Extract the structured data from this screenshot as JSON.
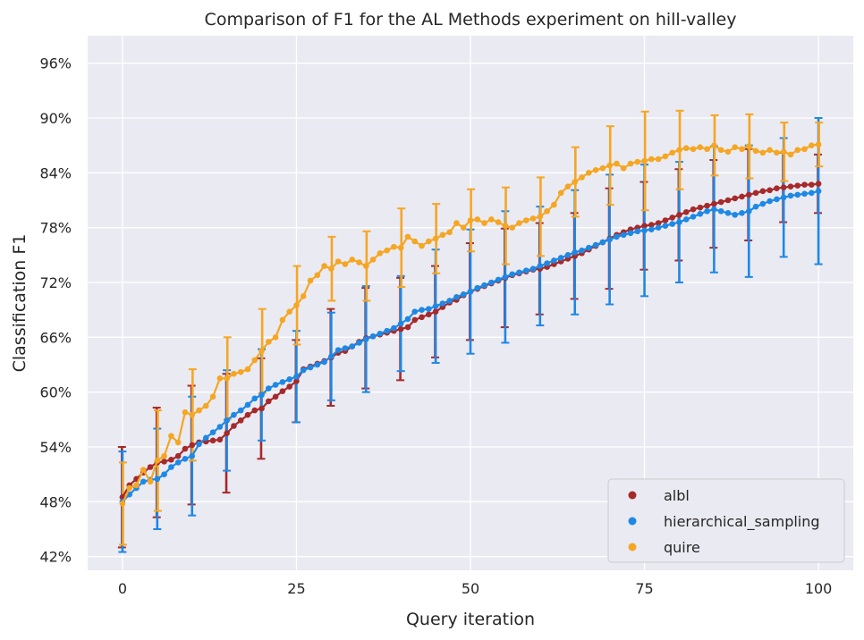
{
  "chart_data": {
    "type": "line",
    "title": "Comparison of F1 for the AL Methods experiment on hill-valley",
    "xlabel": "Query iteration",
    "ylabel": "Classification F1",
    "xlim": [
      -5,
      105
    ],
    "ylim": [
      40.5,
      99
    ],
    "x_ticks": [
      0,
      25,
      50,
      75,
      100
    ],
    "x_tick_labels": [
      "0",
      "25",
      "50",
      "75",
      "100"
    ],
    "y_ticks": [
      42,
      48,
      54,
      60,
      66,
      72,
      78,
      84,
      90,
      96
    ],
    "y_tick_labels": [
      "42%",
      "48%",
      "54%",
      "60%",
      "66%",
      "72%",
      "78%",
      "84%",
      "90%",
      "96%"
    ],
    "grid": true,
    "legend_position": "bottom-right",
    "errorbar_every": 5,
    "series": [
      {
        "name": "albl",
        "color": "#a52a2a",
        "values": [
          48.5,
          49.8,
          50.5,
          51.2,
          51.8,
          52.3,
          52.4,
          52.6,
          53.0,
          53.8,
          54.2,
          54.5,
          54.6,
          54.7,
          54.8,
          55.5,
          56.3,
          56.9,
          57.5,
          58.0,
          58.2,
          59.0,
          59.5,
          60.1,
          60.6,
          61.2,
          62.5,
          62.8,
          63.1,
          63.4,
          63.8,
          64.3,
          64.5,
          65.0,
          65.5,
          65.9,
          66.1,
          66.3,
          66.5,
          66.7,
          66.9,
          67.1,
          67.9,
          68.2,
          68.5,
          68.8,
          69.3,
          69.8,
          70.1,
          70.6,
          71.0,
          71.3,
          71.6,
          71.9,
          72.2,
          72.5,
          72.8,
          73.0,
          73.2,
          73.4,
          73.5,
          73.7,
          74.0,
          74.3,
          74.6,
          74.9,
          75.2,
          75.6,
          76.0,
          76.4,
          76.8,
          77.2,
          77.5,
          77.8,
          78.0,
          78.2,
          78.3,
          78.5,
          78.8,
          79.1,
          79.4,
          79.7,
          80.0,
          80.2,
          80.4,
          80.6,
          80.8,
          81.0,
          81.2,
          81.4,
          81.6,
          81.8,
          82.0,
          82.1,
          82.3,
          82.4,
          82.5,
          82.6,
          82.7,
          82.7,
          82.8
        ],
        "errors": [
          5.5,
          6.0,
          6.2,
          6.4,
          6.2,
          6.0,
          5.8,
          6.0,
          6.2,
          6.5,
          6.5,
          6.7,
          6.6,
          6.8,
          6.8,
          6.5,
          6.4,
          6.2,
          6.0,
          5.8,
          5.5,
          5.2,
          5.0,
          4.8,
          4.6,
          4.5,
          4.6,
          4.7,
          4.8,
          5.0,
          5.3,
          5.3,
          5.2,
          5.3,
          5.4,
          5.5,
          5.5,
          5.6,
          5.6,
          5.6,
          5.6,
          5.5,
          5.5,
          5.4,
          5.2,
          5.0,
          5.0,
          5.0,
          5.1,
          5.2,
          5.3,
          5.3,
          5.3,
          5.4,
          5.4,
          5.4,
          5.4,
          5.3,
          5.2,
          5.2,
          5.0,
          5.0,
          5.0,
          4.9,
          4.8,
          4.7,
          4.8,
          5.0,
          5.3,
          5.4,
          5.5,
          5.2,
          5.0,
          4.9,
          4.8,
          4.8,
          4.9,
          5.0,
          5.1,
          5.1,
          5.0,
          4.9,
          4.8,
          4.8,
          4.8,
          4.8,
          4.8,
          4.8,
          4.8,
          4.9,
          5.0,
          4.8,
          4.6,
          4.3,
          4.0,
          3.8,
          3.7,
          3.5,
          3.4,
          3.3,
          3.2
        ]
      },
      {
        "name": "hierarchical_sampling",
        "color": "#1e88e5",
        "values": [
          48.0,
          48.8,
          49.5,
          50.2,
          50.4,
          50.5,
          51.0,
          51.8,
          52.3,
          52.7,
          53.0,
          54.3,
          55.0,
          55.6,
          56.2,
          56.9,
          57.5,
          58.0,
          58.6,
          59.3,
          59.7,
          60.4,
          60.8,
          61.1,
          61.4,
          61.7,
          62.4,
          62.7,
          63.0,
          63.3,
          63.9,
          64.6,
          64.8,
          65.0,
          65.4,
          65.8,
          66.1,
          66.4,
          66.7,
          67.0,
          67.5,
          68.0,
          68.8,
          69.0,
          69.1,
          69.4,
          69.7,
          70.0,
          70.4,
          70.7,
          71.0,
          71.4,
          71.7,
          72.0,
          72.3,
          72.6,
          72.9,
          73.1,
          73.3,
          73.5,
          73.8,
          74.1,
          74.4,
          74.7,
          75.0,
          75.3,
          75.5,
          75.8,
          76.1,
          76.4,
          76.7,
          77.0,
          77.2,
          77.4,
          77.6,
          77.7,
          77.8,
          78.0,
          78.2,
          78.4,
          78.6,
          78.9,
          79.2,
          79.5,
          79.8,
          80.0,
          79.8,
          79.6,
          79.4,
          79.6,
          79.8,
          80.3,
          80.6,
          80.9,
          81.1,
          81.3,
          81.5,
          81.6,
          81.7,
          81.8,
          82.0
        ],
        "errors": [
          5.5,
          5.8,
          5.9,
          6.0,
          5.8,
          5.5,
          5.6,
          5.8,
          6.0,
          6.2,
          6.5,
          6.3,
          6.0,
          5.8,
          5.6,
          5.5,
          5.4,
          5.2,
          5.0,
          5.0,
          5.0,
          5.3,
          5.4,
          5.4,
          5.2,
          5.0,
          4.9,
          4.8,
          4.8,
          4.8,
          4.8,
          5.0,
          5.2,
          5.4,
          5.6,
          5.8,
          5.7,
          5.6,
          5.5,
          5.3,
          5.2,
          5.3,
          5.4,
          5.5,
          6.0,
          6.2,
          6.4,
          6.6,
          6.8,
          6.8,
          6.8,
          6.9,
          7.0,
          7.1,
          7.1,
          7.2,
          7.1,
          7.0,
          6.9,
          6.7,
          6.5,
          6.6,
          6.8,
          6.9,
          6.9,
          6.8,
          6.7,
          6.8,
          6.9,
          7.0,
          7.1,
          7.2,
          7.2,
          7.2,
          7.2,
          7.2,
          7.0,
          6.9,
          6.8,
          6.7,
          6.6,
          6.6,
          6.6,
          6.7,
          6.8,
          6.9,
          6.9,
          7.0,
          7.0,
          7.1,
          7.2,
          7.0,
          6.9,
          6.8,
          6.6,
          6.5,
          6.8,
          7.2,
          7.5,
          7.8,
          8.0
        ]
      },
      {
        "name": "quire",
        "color": "#f5a623",
        "values": [
          47.8,
          49.5,
          49.8,
          51.5,
          50.2,
          52.5,
          53.0,
          55.2,
          54.5,
          57.8,
          57.5,
          58.0,
          58.5,
          59.5,
          61.5,
          61.5,
          62.0,
          62.2,
          62.5,
          63.5,
          64.5,
          65.5,
          66.0,
          67.9,
          68.8,
          69.5,
          70.5,
          72.2,
          72.8,
          73.8,
          73.5,
          74.3,
          74.0,
          74.5,
          74.2,
          73.8,
          74.5,
          75.2,
          75.5,
          75.9,
          75.8,
          77.0,
          76.5,
          76.0,
          76.5,
          76.8,
          77.2,
          77.5,
          78.5,
          78.0,
          78.8,
          78.9,
          78.5,
          78.9,
          78.6,
          78.2,
          78.0,
          78.5,
          78.8,
          79.0,
          79.2,
          79.8,
          80.5,
          81.8,
          82.5,
          83.0,
          83.5,
          84.0,
          84.3,
          84.5,
          84.8,
          85.0,
          84.5,
          85.0,
          85.2,
          85.3,
          85.5,
          85.5,
          85.8,
          86.2,
          86.5,
          86.7,
          86.6,
          86.8,
          86.6,
          87.0,
          86.5,
          86.3,
          86.8,
          86.6,
          86.9,
          86.4,
          86.2,
          86.5,
          86.2,
          86.3,
          86.0,
          86.5,
          86.6,
          87.0,
          87.1
        ],
        "errors": [
          4.5,
          4.6,
          4.8,
          5.0,
          5.3,
          5.5,
          5.5,
          5.2,
          5.0,
          5.0,
          5.0,
          4.8,
          4.6,
          4.5,
          4.5,
          4.5,
          4.4,
          4.3,
          4.3,
          4.5,
          4.6,
          4.6,
          4.5,
          4.5,
          4.4,
          4.3,
          4.0,
          3.8,
          3.6,
          3.5,
          3.5,
          3.4,
          3.4,
          3.5,
          3.6,
          3.8,
          3.9,
          4.0,
          4.1,
          4.2,
          4.3,
          4.1,
          4.0,
          3.9,
          3.8,
          3.8,
          3.7,
          3.6,
          3.5,
          3.4,
          3.4,
          3.5,
          3.7,
          3.9,
          4.1,
          4.2,
          4.1,
          4.0,
          4.0,
          4.1,
          4.3,
          4.1,
          4.0,
          3.9,
          3.8,
          3.8,
          3.9,
          4.0,
          4.1,
          4.2,
          4.3,
          4.6,
          4.9,
          5.2,
          5.3,
          5.4,
          5.1,
          4.9,
          4.7,
          4.5,
          4.3,
          3.9,
          3.6,
          3.4,
          3.3,
          3.3,
          3.3,
          3.3,
          3.3,
          3.4,
          3.5,
          3.4,
          3.3,
          3.2,
          3.1,
          3.2,
          2.8,
          2.6,
          2.5,
          2.4,
          2.4
        ]
      }
    ]
  }
}
